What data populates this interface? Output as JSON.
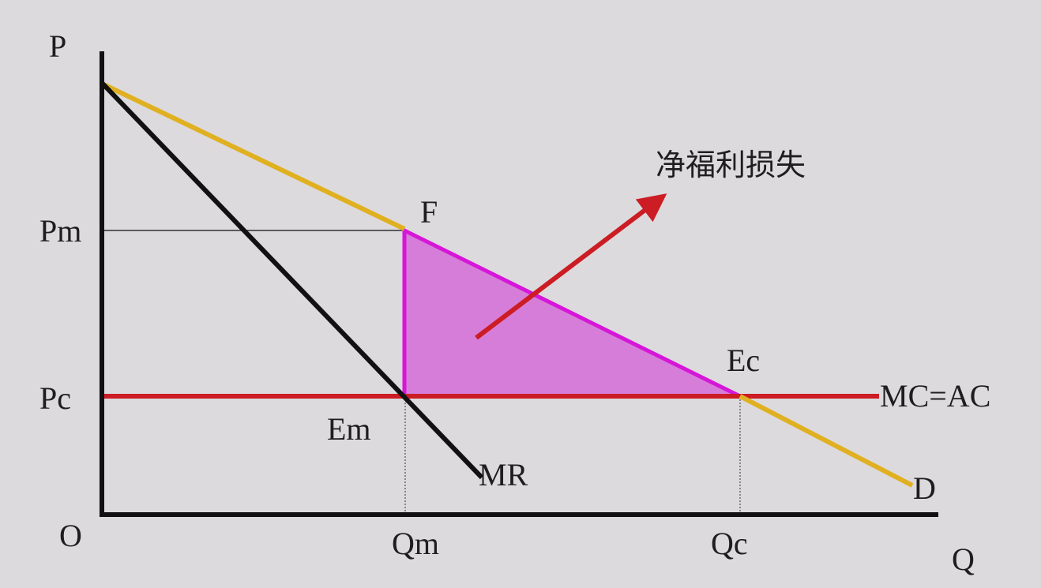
{
  "labels": {
    "p_axis": "P",
    "q_axis": "Q",
    "origin": "O",
    "pm": "Pm",
    "pc": "Pc",
    "qm": "Qm",
    "qc": "Qc",
    "f": "F",
    "ec": "Ec",
    "em": "Em",
    "mr": "MR",
    "mc_ac": "MC=AC",
    "d": "D",
    "deadweight_loss": "净福利损失"
  },
  "colors": {
    "background": "#dcdadc",
    "demand": "#e0b020",
    "mr": "#111111",
    "mc": "#cc1c24",
    "deadweight_fill": "#d67dd9",
    "deadweight_stroke": "#d616d8",
    "arrow": "#cc1c24"
  }
}
